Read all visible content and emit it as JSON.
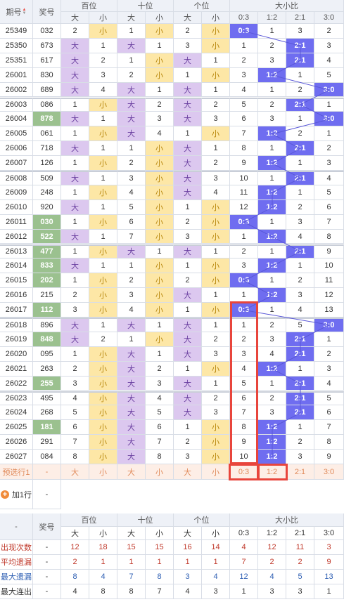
{
  "header": {
    "issue": "期号",
    "number": "奖号",
    "hundreds": "百位",
    "tens": "十位",
    "units": "个位",
    "ratio": "大小比",
    "big": "大",
    "small": "小",
    "ratios": [
      "0:3",
      "1:2",
      "2:1",
      "3:0"
    ]
  },
  "rows": [
    {
      "issue": "25349",
      "num": "032",
      "h": [
        "2",
        "小"
      ],
      "t": [
        "1",
        "小"
      ],
      "u": [
        "2",
        "小"
      ],
      "r": [
        "0:3",
        "1",
        "3",
        "2"
      ],
      "hi": false,
      "sel": 0
    },
    {
      "issue": "25350",
      "num": "673",
      "h": [
        "大",
        "1"
      ],
      "t": [
        "大",
        "1"
      ],
      "u": [
        "3",
        "小"
      ],
      "r": [
        "1",
        "2",
        "2:1",
        "3"
      ],
      "hi": false,
      "sel": 2
    },
    {
      "issue": "25351",
      "num": "617",
      "h": [
        "大",
        "2"
      ],
      "t": [
        "1",
        "小"
      ],
      "u": [
        "大",
        "1"
      ],
      "r": [
        "2",
        "3",
        "2:1",
        "4"
      ],
      "hi": false,
      "sel": 2
    },
    {
      "issue": "26001",
      "num": "830",
      "h": [
        "大",
        "3"
      ],
      "t": [
        "2",
        "小"
      ],
      "u": [
        "1",
        "小"
      ],
      "r": [
        "3",
        "1:2",
        "1",
        "5"
      ],
      "hi": false,
      "sel": 1
    },
    {
      "issue": "26002",
      "num": "689",
      "h": [
        "大",
        "4"
      ],
      "t": [
        "大",
        "1"
      ],
      "u": [
        "大",
        "1"
      ],
      "r": [
        "4",
        "1",
        "2",
        "3:0"
      ],
      "hi": false,
      "sel": 3
    },
    {
      "issue": "26003",
      "num": "086",
      "h": [
        "1",
        "小"
      ],
      "t": [
        "大",
        "2"
      ],
      "u": [
        "大",
        "2"
      ],
      "r": [
        "5",
        "2",
        "2:1",
        "1"
      ],
      "hi": false,
      "sel": 2
    },
    {
      "issue": "26004",
      "num": "878",
      "h": [
        "大",
        "1"
      ],
      "t": [
        "大",
        "3"
      ],
      "u": [
        "大",
        "3"
      ],
      "r": [
        "6",
        "3",
        "1",
        "3:0"
      ],
      "hi": true,
      "sel": 3
    },
    {
      "issue": "26005",
      "num": "061",
      "h": [
        "1",
        "小"
      ],
      "t": [
        "大",
        "4"
      ],
      "u": [
        "1",
        "小"
      ],
      "r": [
        "7",
        "1:2",
        "2",
        "1"
      ],
      "hi": false,
      "sel": 1
    },
    {
      "issue": "26006",
      "num": "718",
      "h": [
        "大",
        "1"
      ],
      "t": [
        "1",
        "小"
      ],
      "u": [
        "大",
        "1"
      ],
      "r": [
        "8",
        "1",
        "2:1",
        "2"
      ],
      "hi": false,
      "sel": 2
    },
    {
      "issue": "26007",
      "num": "126",
      "h": [
        "1",
        "小"
      ],
      "t": [
        "2",
        "小"
      ],
      "u": [
        "大",
        "2"
      ],
      "r": [
        "9",
        "1:2",
        "1",
        "3"
      ],
      "hi": false,
      "sel": 1
    },
    {
      "issue": "26008",
      "num": "509",
      "h": [
        "大",
        "1"
      ],
      "t": [
        "3",
        "小"
      ],
      "u": [
        "大",
        "3"
      ],
      "r": [
        "10",
        "1",
        "2:1",
        "4"
      ],
      "hi": false,
      "sel": 2
    },
    {
      "issue": "26009",
      "num": "248",
      "h": [
        "1",
        "小"
      ],
      "t": [
        "4",
        "小"
      ],
      "u": [
        "大",
        "4"
      ],
      "r": [
        "11",
        "1:2",
        "1",
        "5"
      ],
      "hi": false,
      "sel": 1
    },
    {
      "issue": "26010",
      "num": "920",
      "h": [
        "大",
        "1"
      ],
      "t": [
        "5",
        "小"
      ],
      "u": [
        "1",
        "小"
      ],
      "r": [
        "12",
        "1:2",
        "2",
        "6"
      ],
      "hi": false,
      "sel": 1
    },
    {
      "issue": "26011",
      "num": "030",
      "h": [
        "1",
        "小"
      ],
      "t": [
        "6",
        "小"
      ],
      "u": [
        "2",
        "小"
      ],
      "r": [
        "0:3",
        "1",
        "3",
        "7"
      ],
      "hi": true,
      "sel": 0
    },
    {
      "issue": "26012",
      "num": "522",
      "h": [
        "大",
        "1"
      ],
      "t": [
        "7",
        "小"
      ],
      "u": [
        "3",
        "小"
      ],
      "r": [
        "1",
        "1:2",
        "4",
        "8"
      ],
      "hi": true,
      "sel": 1
    },
    {
      "issue": "26013",
      "num": "477",
      "h": [
        "1",
        "小"
      ],
      "t": [
        "大",
        "1"
      ],
      "u": [
        "大",
        "1"
      ],
      "r": [
        "2",
        "1",
        "2:1",
        "9"
      ],
      "hi": true,
      "sel": 2
    },
    {
      "issue": "26014",
      "num": "833",
      "h": [
        "大",
        "1"
      ],
      "t": [
        "1",
        "小"
      ],
      "u": [
        "1",
        "小"
      ],
      "r": [
        "3",
        "1:2",
        "1",
        "10"
      ],
      "hi": true,
      "sel": 1
    },
    {
      "issue": "26015",
      "num": "202",
      "h": [
        "1",
        "小"
      ],
      "t": [
        "2",
        "小"
      ],
      "u": [
        "2",
        "小"
      ],
      "r": [
        "0:3",
        "1",
        "2",
        "11"
      ],
      "hi": true,
      "sel": 0
    },
    {
      "issue": "26016",
      "num": "215",
      "h": [
        "2",
        "小"
      ],
      "t": [
        "3",
        "小"
      ],
      "u": [
        "大",
        "1"
      ],
      "r": [
        "1",
        "1:2",
        "3",
        "12"
      ],
      "hi": false,
      "sel": 1
    },
    {
      "issue": "26017",
      "num": "112",
      "h": [
        "3",
        "小"
      ],
      "t": [
        "4",
        "小"
      ],
      "u": [
        "1",
        "小"
      ],
      "r": [
        "0:3",
        "1",
        "4",
        "13"
      ],
      "hi": true,
      "sel": 0
    },
    {
      "issue": "26018",
      "num": "896",
      "h": [
        "大",
        "1"
      ],
      "t": [
        "大",
        "1"
      ],
      "u": [
        "大",
        "1"
      ],
      "r": [
        "1",
        "2",
        "5",
        "3:0"
      ],
      "hi": false,
      "sel": 3
    },
    {
      "issue": "26019",
      "num": "848",
      "h": [
        "大",
        "2"
      ],
      "t": [
        "1",
        "小"
      ],
      "u": [
        "大",
        "2"
      ],
      "r": [
        "2",
        "3",
        "2:1",
        "1"
      ],
      "hi": true,
      "sel": 2
    },
    {
      "issue": "26020",
      "num": "095",
      "h": [
        "1",
        "小"
      ],
      "t": [
        "大",
        "1"
      ],
      "u": [
        "大",
        "3"
      ],
      "r": [
        "3",
        "4",
        "2:1",
        "2"
      ],
      "hi": false,
      "sel": 2
    },
    {
      "issue": "26021",
      "num": "263",
      "h": [
        "2",
        "小"
      ],
      "t": [
        "大",
        "2"
      ],
      "u": [
        "1",
        "小"
      ],
      "r": [
        "4",
        "1:2",
        "1",
        "3"
      ],
      "hi": false,
      "sel": 1
    },
    {
      "issue": "26022",
      "num": "255",
      "h": [
        "3",
        "小"
      ],
      "t": [
        "大",
        "3"
      ],
      "u": [
        "大",
        "1"
      ],
      "r": [
        "5",
        "1",
        "2:1",
        "4"
      ],
      "hi": true,
      "sel": 2
    },
    {
      "issue": "26023",
      "num": "495",
      "h": [
        "4",
        "小"
      ],
      "t": [
        "大",
        "4"
      ],
      "u": [
        "大",
        "2"
      ],
      "r": [
        "6",
        "2",
        "2:1",
        "5"
      ],
      "hi": false,
      "sel": 2
    },
    {
      "issue": "26024",
      "num": "268",
      "h": [
        "5",
        "小"
      ],
      "t": [
        "大",
        "5"
      ],
      "u": [
        "大",
        "3"
      ],
      "r": [
        "7",
        "3",
        "2:1",
        "6"
      ],
      "hi": false,
      "sel": 2
    },
    {
      "issue": "26025",
      "num": "181",
      "h": [
        "6",
        "小"
      ],
      "t": [
        "大",
        "6"
      ],
      "u": [
        "1",
        "小"
      ],
      "r": [
        "8",
        "1:2",
        "1",
        "7"
      ],
      "hi": true,
      "sel": 1
    },
    {
      "issue": "26026",
      "num": "291",
      "h": [
        "7",
        "小"
      ],
      "t": [
        "大",
        "7"
      ],
      "u": [
        "2",
        "小"
      ],
      "r": [
        "9",
        "1:2",
        "2",
        "8"
      ],
      "hi": false,
      "sel": 1
    },
    {
      "issue": "26027",
      "num": "084",
      "h": [
        "8",
        "小"
      ],
      "t": [
        "大",
        "8"
      ],
      "u": [
        "3",
        "小"
      ],
      "r": [
        "10",
        "1:2",
        "3",
        "9"
      ],
      "hi": false,
      "sel": 1
    }
  ],
  "predict": {
    "label": "预选行1",
    "num": "-",
    "vals": [
      "大",
      "小",
      "大",
      "小",
      "大",
      "小",
      "0:3",
      "1:2",
      "2:1",
      "3:0"
    ]
  },
  "add_row": {
    "label": "加1行",
    "value": "-"
  },
  "footer_header": {
    "dash": "-",
    "number": "奖号"
  },
  "stats": [
    {
      "label": "出现次数",
      "num": "-",
      "vals": [
        "12",
        "18",
        "15",
        "15",
        "16",
        "14",
        "4",
        "12",
        "11",
        "3"
      ],
      "color": "#c0392b"
    },
    {
      "label": "平均遗漏",
      "num": "-",
      "vals": [
        "2",
        "1",
        "1",
        "1",
        "1",
        "1",
        "7",
        "2",
        "2",
        "9"
      ],
      "color": "#c0392b"
    },
    {
      "label": "最大遗漏",
      "num": "-",
      "vals": [
        "8",
        "4",
        "7",
        "8",
        "3",
        "4",
        "12",
        "4",
        "5",
        "13"
      ],
      "color": "#2e5fb3"
    },
    {
      "label": "最大连出",
      "num": "-",
      "vals": [
        "4",
        "8",
        "8",
        "7",
        "4",
        "3",
        "1",
        "3",
        "3",
        "1"
      ],
      "color": "#333333"
    }
  ]
}
